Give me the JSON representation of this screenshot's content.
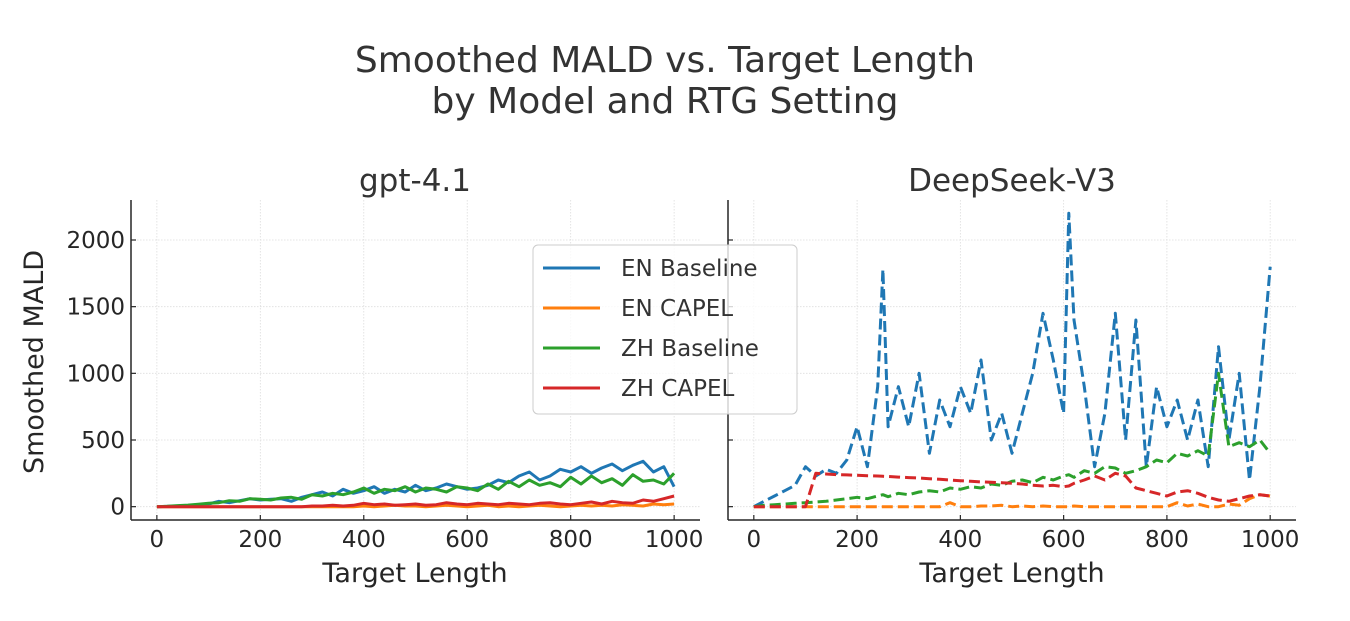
{
  "chart_data": {
    "type": "line",
    "title": "Smoothed MALD vs. Target Length\nby Model and RTG Setting",
    "title_lines": [
      "Smoothed MALD vs. Target Length",
      "by Model and RTG Setting"
    ],
    "legend": {
      "placement": "center",
      "entries": [
        {
          "label": "EN Baseline",
          "color": "#1f77b4"
        },
        {
          "label": "EN CAPEL",
          "color": "#ff7f0e"
        },
        {
          "label": "ZH Baseline",
          "color": "#2ca02c"
        },
        {
          "label": "ZH CAPEL",
          "color": "#d62728"
        }
      ]
    },
    "shared_y": true,
    "ylabel": "Smoothed MALD",
    "ylim": [
      -100,
      2300
    ],
    "yticks": [
      0,
      500,
      1000,
      1500,
      2000
    ],
    "grid": true,
    "subplots": [
      {
        "title": "gpt-4.1",
        "xlabel": "Target Length",
        "xlim": [
          -50,
          1050
        ],
        "xticks": [
          0,
          200,
          400,
          600,
          800,
          1000
        ],
        "linestyle": "solid",
        "x": [
          0,
          20,
          40,
          60,
          80,
          100,
          120,
          140,
          160,
          180,
          200,
          220,
          240,
          260,
          280,
          300,
          320,
          340,
          360,
          380,
          400,
          420,
          440,
          460,
          480,
          500,
          520,
          540,
          560,
          580,
          600,
          620,
          640,
          660,
          680,
          700,
          720,
          740,
          760,
          780,
          800,
          820,
          840,
          860,
          880,
          900,
          920,
          940,
          960,
          980,
          1000
        ],
        "series": [
          {
            "name": "EN Baseline",
            "color": "#1f77b4",
            "values": [
              0,
              2,
              5,
              8,
              12,
              20,
              40,
              30,
              45,
              60,
              50,
              55,
              60,
              40,
              70,
              90,
              110,
              80,
              130,
              100,
              120,
              150,
              100,
              130,
              110,
              160,
              120,
              140,
              170,
              150,
              130,
              140,
              160,
              200,
              180,
              230,
              260,
              200,
              230,
              280,
              260,
              300,
              250,
              290,
              320,
              270,
              310,
              340,
              260,
              300,
              150
            ]
          },
          {
            "name": "EN CAPEL",
            "color": "#ff7f0e",
            "values": [
              0,
              0,
              0,
              0,
              0,
              0,
              0,
              0,
              0,
              0,
              0,
              0,
              0,
              0,
              0,
              0,
              0,
              0,
              0,
              0,
              5,
              0,
              5,
              10,
              5,
              5,
              0,
              5,
              10,
              5,
              0,
              5,
              10,
              0,
              5,
              0,
              5,
              10,
              5,
              0,
              5,
              10,
              5,
              10,
              5,
              15,
              10,
              5,
              20,
              15,
              20
            ]
          },
          {
            "name": "ZH Baseline",
            "color": "#2ca02c",
            "values": [
              0,
              3,
              8,
              12,
              18,
              25,
              30,
              45,
              40,
              60,
              55,
              50,
              65,
              70,
              55,
              90,
              80,
              100,
              90,
              110,
              140,
              100,
              130,
              120,
              150,
              110,
              140,
              130,
              110,
              150,
              140,
              120,
              170,
              130,
              190,
              150,
              200,
              160,
              180,
              150,
              220,
              170,
              230,
              180,
              210,
              160,
              240,
              190,
              200,
              170,
              250
            ]
          },
          {
            "name": "ZH CAPEL",
            "color": "#d62728",
            "values": [
              0,
              0,
              0,
              0,
              0,
              0,
              0,
              0,
              0,
              0,
              0,
              0,
              0,
              0,
              0,
              5,
              5,
              10,
              5,
              10,
              25,
              15,
              20,
              10,
              15,
              20,
              10,
              15,
              30,
              20,
              15,
              25,
              20,
              15,
              25,
              20,
              15,
              25,
              30,
              20,
              15,
              25,
              35,
              20,
              40,
              30,
              25,
              50,
              40,
              60,
              80
            ]
          }
        ]
      },
      {
        "title": "DeepSeek-V3",
        "xlabel": "Target Length",
        "xlim": [
          -50,
          1050
        ],
        "xticks": [
          0,
          200,
          400,
          600,
          800,
          1000
        ],
        "linestyle": "dashed",
        "x": [
          0,
          20,
          40,
          60,
          80,
          100,
          120,
          140,
          160,
          180,
          200,
          220,
          240,
          250,
          260,
          280,
          300,
          320,
          340,
          360,
          380,
          400,
          420,
          440,
          460,
          480,
          500,
          520,
          540,
          560,
          580,
          600,
          610,
          620,
          640,
          660,
          680,
          700,
          720,
          740,
          760,
          780,
          800,
          820,
          840,
          860,
          880,
          900,
          920,
          940,
          960,
          980,
          1000
        ],
        "series": [
          {
            "name": "EN Baseline",
            "color": "#1f77b4",
            "values": [
              0,
              40,
              80,
              120,
              160,
              300,
              230,
              280,
              250,
              350,
              600,
              300,
              900,
              1780,
              600,
              900,
              600,
              1000,
              400,
              800,
              600,
              900,
              700,
              1100,
              500,
              700,
              400,
              700,
              1000,
              1450,
              1100,
              700,
              2200,
              1400,
              900,
              300,
              700,
              1450,
              500,
              1400,
              300,
              900,
              600,
              800,
              500,
              800,
              300,
              1200,
              500,
              1000,
              200,
              900,
              1800
            ]
          },
          {
            "name": "EN CAPEL",
            "color": "#ff7f0e",
            "values": [
              0,
              0,
              0,
              0,
              0,
              0,
              0,
              0,
              0,
              0,
              0,
              0,
              0,
              0,
              0,
              0,
              0,
              0,
              0,
              0,
              30,
              0,
              0,
              5,
              5,
              10,
              0,
              5,
              0,
              5,
              0,
              0,
              0,
              5,
              0,
              0,
              0,
              0,
              0,
              0,
              0,
              0,
              0,
              30,
              5,
              20,
              0,
              0,
              20,
              10,
              60,
              90,
              80
            ]
          },
          {
            "name": "ZH Baseline",
            "color": "#2ca02c",
            "values": [
              0,
              10,
              15,
              20,
              25,
              30,
              35,
              40,
              50,
              60,
              70,
              60,
              80,
              90,
              75,
              100,
              90,
              110,
              120,
              110,
              140,
              130,
              150,
              140,
              170,
              160,
              190,
              200,
              180,
              220,
              200,
              230,
              240,
              220,
              270,
              250,
              300,
              290,
              250,
              270,
              300,
              350,
              330,
              400,
              380,
              420,
              380,
              1000,
              450,
              480,
              450,
              500,
              400
            ]
          },
          {
            "name": "ZH CAPEL",
            "color": "#d62728",
            "values": [
              0,
              0,
              0,
              0,
              0,
              0,
              250,
              245,
              240,
              238,
              235,
              232,
              230,
              228,
              226,
              222,
              218,
              215,
              210,
              205,
              200,
              195,
              190,
              186,
              183,
              180,
              176,
              170,
              160,
              155,
              160,
              150,
              155,
              175,
              200,
              230,
              200,
              250,
              230,
              140,
              120,
              100,
              80,
              110,
              120,
              100,
              70,
              50,
              40,
              60,
              80,
              90,
              80
            ]
          }
        ]
      }
    ]
  }
}
